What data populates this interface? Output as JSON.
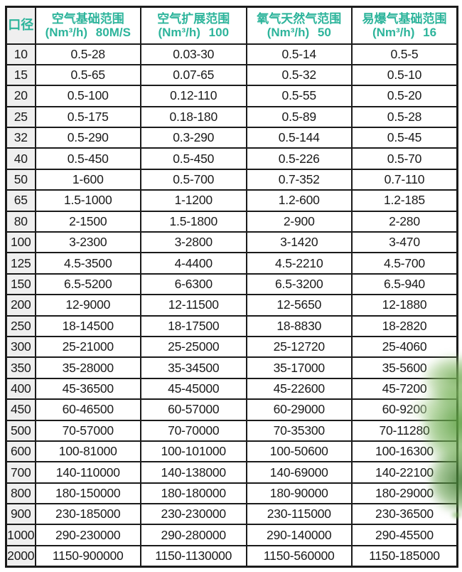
{
  "chart_data": {
    "type": "table",
    "columns": [
      {
        "title": "口径",
        "subtitle": ""
      },
      {
        "title": "空气基础范围",
        "subtitle": "(Nm³/h) 80M/S"
      },
      {
        "title": "空气扩展范围",
        "subtitle": "(Nm³/h) 100"
      },
      {
        "title": "氧气天然气范围",
        "subtitle": "(Nm³/h) 50"
      },
      {
        "title": "易爆气基础范围",
        "subtitle": "(Nm³/h) 16"
      }
    ],
    "rows": [
      [
        "10",
        "0.5-28",
        "0.03-30",
        "0.5-14",
        "0.5-5"
      ],
      [
        "15",
        "0.5-65",
        "0.07-65",
        "0.5-32",
        "0.5-10"
      ],
      [
        "20",
        "0.5-100",
        "0.12-110",
        "0.5-55",
        "0.5-20"
      ],
      [
        "25",
        "0.5-175",
        "0.18-180",
        "0.5-89",
        "0.5-28"
      ],
      [
        "32",
        "0.5-290",
        "0.3-290",
        "0.5-144",
        "0.5-45"
      ],
      [
        "40",
        "0.5-450",
        "0.5-450",
        "0.5-226",
        "0.5-70"
      ],
      [
        "50",
        "1-600",
        "0.5-700",
        "0.7-352",
        "0.7-110"
      ],
      [
        "65",
        "1.5-1000",
        "1-1200",
        "1.2-600",
        "1.2-185"
      ],
      [
        "80",
        "2-1500",
        "1.5-1800",
        "2-900",
        "2-280"
      ],
      [
        "100",
        "3-2300",
        "3-2800",
        "3-1420",
        "3-470"
      ],
      [
        "125",
        "4.5-3500",
        "4-4400",
        "4.5-2210",
        "4.5-700"
      ],
      [
        "150",
        "6.5-5200",
        "6-6300",
        "6.5-3200",
        "6.5-940"
      ],
      [
        "200",
        "12-9000",
        "12-11500",
        "12-5650",
        "12-1880"
      ],
      [
        "250",
        "18-14500",
        "18-17500",
        "18-8830",
        "18-2820"
      ],
      [
        "300",
        "25-21000",
        "25-25000",
        "25-12720",
        "25-4060"
      ],
      [
        "350",
        "35-28000",
        "35-34500",
        "35-17000",
        "35-5600"
      ],
      [
        "400",
        "45-36500",
        "45-45000",
        "45-22600",
        "45-7200"
      ],
      [
        "450",
        "60-46500",
        "60-57000",
        "60-29000",
        "60-9200"
      ],
      [
        "500",
        "70-57000",
        "70-70000",
        "70-35300",
        "70-11280"
      ],
      [
        "600",
        "100-81000",
        "100-101000",
        "100-50600",
        "100-16300"
      ],
      [
        "700",
        "140-110000",
        "140-138000",
        "140-69000",
        "140-22100"
      ],
      [
        "800",
        "180-150000",
        "180-180000",
        "180-90000",
        "180-29000"
      ],
      [
        "900",
        "230-185000",
        "230-230000",
        "230-115000",
        "230-36500"
      ],
      [
        "1000",
        "290-230000",
        "290-280000",
        "290-140000",
        "290-45500"
      ],
      [
        "2000",
        "1150-900000",
        "1150-1130000",
        "1150-560000",
        "1150-185000"
      ]
    ]
  },
  "colors": {
    "header_text": "#2db49b",
    "cell_text": "#1a1a1a",
    "border": "#1b1b1b",
    "diameter_column_bg": "#efefef",
    "leaf_green": "#5a9e3f"
  }
}
